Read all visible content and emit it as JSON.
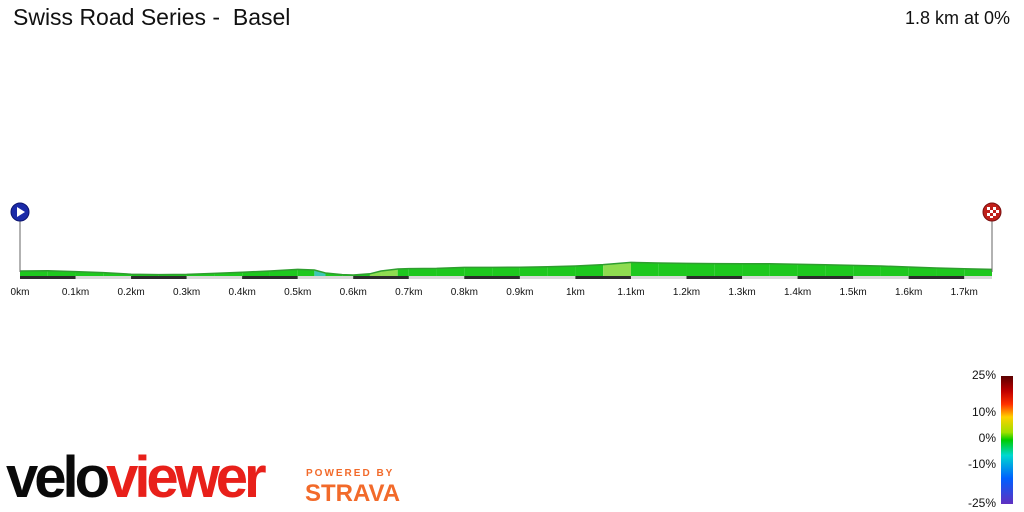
{
  "title": "Swiss Road Series -  Basel",
  "summary": "1.8 km at 0%",
  "chart_data": {
    "type": "area",
    "x": [
      0,
      0.05,
      0.1,
      0.15,
      0.2,
      0.25,
      0.3,
      0.35,
      0.4,
      0.45,
      0.5,
      0.53,
      0.55,
      0.58,
      0.6,
      0.63,
      0.65,
      0.68,
      0.7,
      0.75,
      0.8,
      0.85,
      0.9,
      0.95,
      1.0,
      1.05,
      1.1,
      1.15,
      1.2,
      1.25,
      1.3,
      1.35,
      1.4,
      1.45,
      1.5,
      1.55,
      1.6,
      1.65,
      1.7,
      1.75
    ],
    "y": [
      4.0,
      4.1,
      3.7,
      3.2,
      2.4,
      2.2,
      2.3,
      2.8,
      3.4,
      4.0,
      4.8,
      4.5,
      3.0,
      2.2,
      2.0,
      2.6,
      4.0,
      5.0,
      5.2,
      5.3,
      5.8,
      5.8,
      5.9,
      6.1,
      6.5,
      7.2,
      8.3,
      8.0,
      7.8,
      7.7,
      7.6,
      7.6,
      7.4,
      7.1,
      6.8,
      6.5,
      6.0,
      5.5,
      5.1,
      4.8
    ],
    "xlabel": "",
    "ylabel": "",
    "xlim": [
      0,
      1.75
    ],
    "x_tick_labels": [
      "0km",
      "0.1km",
      "0.2km",
      "0.3km",
      "0.4km",
      "0.5km",
      "0.6km",
      "0.7km",
      "0.8km",
      "0.9km",
      "1km",
      "1.1km",
      "1.2km",
      "1.3km",
      "1.4km",
      "1.5km",
      "1.6km",
      "1.7km"
    ],
    "x_tick_values": [
      0,
      0.1,
      0.2,
      0.3,
      0.4,
      0.5,
      0.6,
      0.7,
      0.8,
      0.9,
      1.0,
      1.1,
      1.2,
      1.3,
      1.4,
      1.5,
      1.6,
      1.7
    ],
    "start_marker": "start-flag",
    "finish_marker": "finish-flag",
    "gradient_legend": [
      "25%",
      "10%",
      "0%",
      "-10%",
      "-25%"
    ],
    "colors": {
      "flat": "#1ec81e",
      "rise": "#8fdc50",
      "fall": "#3cc8b4",
      "edge": "#2f9e2f"
    }
  },
  "branding": {
    "logo_part1": "velo",
    "logo_part2": "viewer",
    "powered_by": "POWERED BY",
    "strava": "STRAVA"
  }
}
